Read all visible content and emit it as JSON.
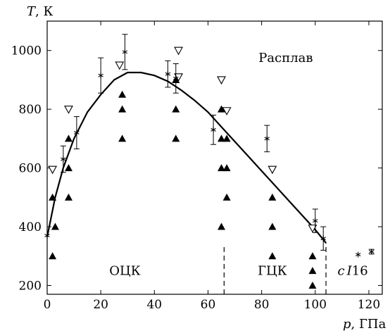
{
  "chart_data": {
    "type": "scatter",
    "xlabel_var": "p",
    "xlabel_unit": ", ГПа",
    "ylabel_var": "T",
    "ylabel_unit": ", К",
    "xlim": [
      0,
      125
    ],
    "ylim": [
      170,
      1100
    ],
    "xticks": [
      0,
      20,
      40,
      60,
      80,
      100,
      120
    ],
    "yticks": [
      200,
      400,
      600,
      800,
      1000
    ],
    "regions": [
      {
        "label": "Расплав",
        "x": 89,
        "y": 975
      },
      {
        "label": "ОЦК",
        "x": 29,
        "y": 250
      },
      {
        "label": "ГЦК",
        "x": 84,
        "y": 250
      }
    ],
    "region_cI16": {
      "prefix": "c",
      "italic": "I",
      "suffix": "16",
      "x": 114,
      "y": 250
    },
    "phase_boundaries": [
      {
        "x": 66,
        "y_from": 170,
        "y_to": 340
      },
      {
        "x": 104,
        "y_from": 170,
        "y_to": 345
      }
    ],
    "melting_curve": [
      [
        0,
        365
      ],
      [
        3,
        500
      ],
      [
        6,
        600
      ],
      [
        10,
        700
      ],
      [
        15,
        790
      ],
      [
        20,
        850
      ],
      [
        25,
        900
      ],
      [
        30,
        925
      ],
      [
        35,
        925
      ],
      [
        40,
        915
      ],
      [
        45,
        895
      ],
      [
        50,
        865
      ],
      [
        55,
        830
      ],
      [
        60,
        790
      ],
      [
        65,
        740
      ],
      [
        70,
        690
      ],
      [
        75,
        640
      ],
      [
        80,
        590
      ],
      [
        85,
        540
      ],
      [
        90,
        490
      ],
      [
        95,
        440
      ],
      [
        100,
        390
      ],
      [
        104,
        345
      ]
    ],
    "series": [
      {
        "name": "solid",
        "marker": "filled-triangle",
        "points": [
          [
            2,
            300
          ],
          [
            2,
            500
          ],
          [
            3,
            400
          ],
          [
            8,
            500
          ],
          [
            8,
            600
          ],
          [
            8,
            700
          ],
          [
            28,
            700
          ],
          [
            28,
            800
          ],
          [
            28,
            850
          ],
          [
            48,
            700
          ],
          [
            48,
            800
          ],
          [
            48,
            900
          ],
          [
            65,
            400
          ],
          [
            65,
            600
          ],
          [
            65,
            700
          ],
          [
            65,
            800
          ],
          [
            67,
            500
          ],
          [
            67,
            600
          ],
          [
            67,
            700
          ],
          [
            84,
            300
          ],
          [
            84,
            400
          ],
          [
            84,
            500
          ],
          [
            99,
            200
          ],
          [
            99,
            250
          ],
          [
            99,
            300
          ]
        ]
      },
      {
        "name": "melted",
        "marker": "open-triangle-down",
        "points": [
          [
            2,
            595
          ],
          [
            8,
            800
          ],
          [
            27,
            950
          ],
          [
            49,
            1000
          ],
          [
            49,
            910
          ],
          [
            65,
            900
          ],
          [
            67,
            795
          ],
          [
            84,
            595
          ],
          [
            99,
            395
          ]
        ]
      },
      {
        "name": "measured",
        "marker": "star-with-errorbar",
        "points": [
          {
            "x": 0,
            "y": 370,
            "err": 0
          },
          {
            "x": 6,
            "y": 630,
            "err": 45
          },
          {
            "x": 11,
            "y": 720,
            "err": 55
          },
          {
            "x": 20,
            "y": 915,
            "err": 60
          },
          {
            "x": 29,
            "y": 995,
            "err": 60
          },
          {
            "x": 45,
            "y": 920,
            "err": 45
          },
          {
            "x": 48,
            "y": 905,
            "err": 50
          },
          {
            "x": 62,
            "y": 730,
            "err": 50
          },
          {
            "x": 82,
            "y": 700,
            "err": 45
          },
          {
            "x": 100,
            "y": 420,
            "err": 40
          },
          {
            "x": 103,
            "y": 360,
            "err": 40
          },
          {
            "x": 116,
            "y": 305,
            "err": 0
          },
          {
            "x": 121,
            "y": 315,
            "err": 8
          }
        ]
      }
    ]
  }
}
